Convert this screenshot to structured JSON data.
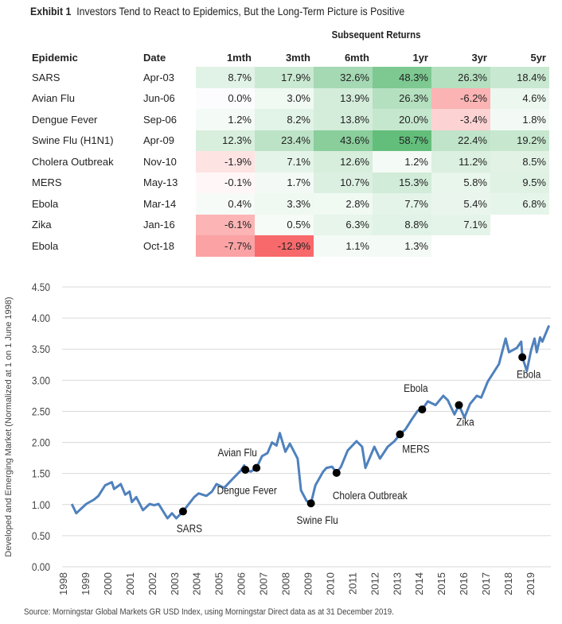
{
  "exhibit_label": "Exhibit 1",
  "title": "Investors Tend to React to Epidemics, But the Long-Term Picture is Positive",
  "table": {
    "group_header": "Subsequent Returns",
    "columns": [
      "Epidemic",
      "Date",
      "1mth",
      "3mth",
      "6mth",
      "1yr",
      "3yr",
      "5yr"
    ],
    "rows": [
      {
        "epidemic": "SARS",
        "date": "Apr-03",
        "values": [
          "8.7%",
          "17.9%",
          "32.6%",
          "48.3%",
          "26.3%",
          "18.4%"
        ]
      },
      {
        "epidemic": "Avian Flu",
        "date": "Jun-06",
        "values": [
          "0.0%",
          "3.0%",
          "13.9%",
          "26.3%",
          "-6.2%",
          "4.6%"
        ]
      },
      {
        "epidemic": "Dengue Fever",
        "date": "Sep-06",
        "values": [
          "1.2%",
          "8.2%",
          "13.8%",
          "20.0%",
          "-3.4%",
          "1.8%"
        ]
      },
      {
        "epidemic": "Swine Flu (H1N1)",
        "date": "Apr-09",
        "values": [
          "12.3%",
          "23.4%",
          "43.6%",
          "58.7%",
          "22.4%",
          "19.2%"
        ]
      },
      {
        "epidemic": "Cholera Outbreak",
        "date": "Nov-10",
        "values": [
          "-1.9%",
          "7.1%",
          "12.6%",
          "1.2%",
          "11.2%",
          "8.5%"
        ]
      },
      {
        "epidemic": "MERS",
        "date": "May-13",
        "values": [
          "-0.1%",
          "1.7%",
          "10.7%",
          "15.3%",
          "5.8%",
          "9.5%"
        ]
      },
      {
        "epidemic": "Ebola",
        "date": "Mar-14",
        "values": [
          "0.4%",
          "3.3%",
          "2.8%",
          "7.7%",
          "5.4%",
          "6.8%"
        ]
      },
      {
        "epidemic": "Zika",
        "date": "Jan-16",
        "values": [
          "-6.1%",
          "0.5%",
          "6.3%",
          "8.8%",
          "7.1%",
          ""
        ]
      },
      {
        "epidemic": "Ebola",
        "date": "Oct-18",
        "values": [
          "-7.7%",
          "-12.9%",
          "1.1%",
          "1.3%",
          "",
          ""
        ]
      }
    ],
    "colors": {
      "positive": "#63be7b",
      "negative": "#f8696b"
    }
  },
  "chart_data": {
    "type": "line",
    "title": "",
    "xlabel": "",
    "ylabel": "Developed and Emerging Market (Normalized at 1 on 1 June 1998)",
    "ylim": [
      0,
      4.5
    ],
    "yticks": [
      "0.00",
      "0.50",
      "1.00",
      "1.50",
      "2.00",
      "2.50",
      "3.00",
      "3.50",
      "4.00",
      "4.50"
    ],
    "xticks": [
      "1998",
      "1999",
      "2000",
      "2001",
      "2002",
      "2003",
      "2004",
      "2005",
      "2006",
      "2007",
      "2008",
      "2009",
      "2010",
      "2011",
      "2012",
      "2013",
      "2014",
      "2015",
      "2016",
      "2017",
      "2018",
      "2019"
    ],
    "grid": true,
    "line_color": "#4f81bd",
    "series": [
      {
        "name": "Morningstar Global Markets GR USD Index",
        "points": [
          [
            1998.4,
            1.01
          ],
          [
            1998.6,
            0.86
          ],
          [
            1999.05,
            1.01
          ],
          [
            1999.4,
            1.08
          ],
          [
            1999.6,
            1.14
          ],
          [
            1999.9,
            1.31
          ],
          [
            2000.2,
            1.36
          ],
          [
            2000.3,
            1.25
          ],
          [
            2000.6,
            1.33
          ],
          [
            2000.8,
            1.16
          ],
          [
            2001.0,
            1.21
          ],
          [
            2001.1,
            1.04
          ],
          [
            2001.3,
            1.12
          ],
          [
            2001.6,
            0.91
          ],
          [
            2001.9,
            1.01
          ],
          [
            2002.1,
            0.99
          ],
          [
            2002.3,
            1.01
          ],
          [
            2002.7,
            0.78
          ],
          [
            2002.9,
            0.86
          ],
          [
            2003.1,
            0.78
          ],
          [
            2003.4,
            0.89
          ],
          [
            2003.9,
            1.12
          ],
          [
            2004.1,
            1.18
          ],
          [
            2004.45,
            1.14
          ],
          [
            2004.7,
            1.21
          ],
          [
            2004.9,
            1.33
          ],
          [
            2005.25,
            1.27
          ],
          [
            2005.65,
            1.42
          ],
          [
            2006.0,
            1.55
          ],
          [
            2006.15,
            1.63
          ],
          [
            2006.2,
            1.56
          ],
          [
            2006.45,
            1.53
          ],
          [
            2006.7,
            1.59
          ],
          [
            2006.95,
            1.78
          ],
          [
            2007.2,
            1.83
          ],
          [
            2007.4,
            2.0
          ],
          [
            2007.6,
            1.95
          ],
          [
            2007.75,
            2.15
          ],
          [
            2008.0,
            1.85
          ],
          [
            2008.2,
            1.98
          ],
          [
            2008.55,
            1.74
          ],
          [
            2008.7,
            1.23
          ],
          [
            2008.95,
            1.06
          ],
          [
            2009.15,
            1.02
          ],
          [
            2009.35,
            1.31
          ],
          [
            2009.7,
            1.53
          ],
          [
            2009.85,
            1.59
          ],
          [
            2010.1,
            1.61
          ],
          [
            2010.3,
            1.51
          ],
          [
            2010.5,
            1.61
          ],
          [
            2010.8,
            1.87
          ],
          [
            2011.2,
            2.02
          ],
          [
            2011.45,
            1.93
          ],
          [
            2011.6,
            1.59
          ],
          [
            2011.8,
            1.76
          ],
          [
            2012.0,
            1.93
          ],
          [
            2012.25,
            1.74
          ],
          [
            2012.6,
            1.93
          ],
          [
            2012.9,
            2.02
          ],
          [
            2013.15,
            2.13
          ],
          [
            2013.4,
            2.21
          ],
          [
            2013.7,
            2.38
          ],
          [
            2013.95,
            2.51
          ],
          [
            2014.15,
            2.53
          ],
          [
            2014.4,
            2.66
          ],
          [
            2014.75,
            2.6
          ],
          [
            2015.1,
            2.75
          ],
          [
            2015.3,
            2.68
          ],
          [
            2015.6,
            2.45
          ],
          [
            2015.8,
            2.6
          ],
          [
            2016.05,
            2.4
          ],
          [
            2016.3,
            2.62
          ],
          [
            2016.6,
            2.75
          ],
          [
            2016.8,
            2.72
          ],
          [
            2017.1,
            2.98
          ],
          [
            2017.6,
            3.26
          ],
          [
            2017.9,
            3.67
          ],
          [
            2018.05,
            3.45
          ],
          [
            2018.4,
            3.52
          ],
          [
            2018.6,
            3.62
          ],
          [
            2018.65,
            3.37
          ],
          [
            2018.85,
            3.15
          ],
          [
            2019.05,
            3.49
          ],
          [
            2019.2,
            3.67
          ],
          [
            2019.3,
            3.45
          ],
          [
            2019.45,
            3.69
          ],
          [
            2019.55,
            3.62
          ],
          [
            2019.85,
            3.88
          ]
        ]
      }
    ],
    "events": [
      {
        "label": "SARS",
        "x": 2003.4,
        "y": 0.89,
        "pos": "below"
      },
      {
        "label": "Avian Flu",
        "x": 2006.2,
        "y": 1.56,
        "pos": "above"
      },
      {
        "label": "Dengue Fever",
        "x": 2006.7,
        "y": 1.59,
        "pos": "below-left"
      },
      {
        "label": "Swine Flu",
        "x": 2009.15,
        "y": 1.02,
        "pos": "below"
      },
      {
        "label": "Cholera Outbreak",
        "x": 2010.3,
        "y": 1.51,
        "pos": "below-right"
      },
      {
        "label": "MERS",
        "x": 2013.15,
        "y": 2.13,
        "pos": "below-right"
      },
      {
        "label": "Ebola",
        "x": 2014.15,
        "y": 2.53,
        "pos": "above"
      },
      {
        "label": "Zika",
        "x": 2015.8,
        "y": 2.6,
        "pos": "below"
      },
      {
        "label": "Ebola",
        "x": 2018.65,
        "y": 3.37,
        "pos": "below"
      }
    ]
  },
  "source": "Source: Morningstar Global Markets GR USD Index, using Morningstar Direct data as at 31 December 2019."
}
